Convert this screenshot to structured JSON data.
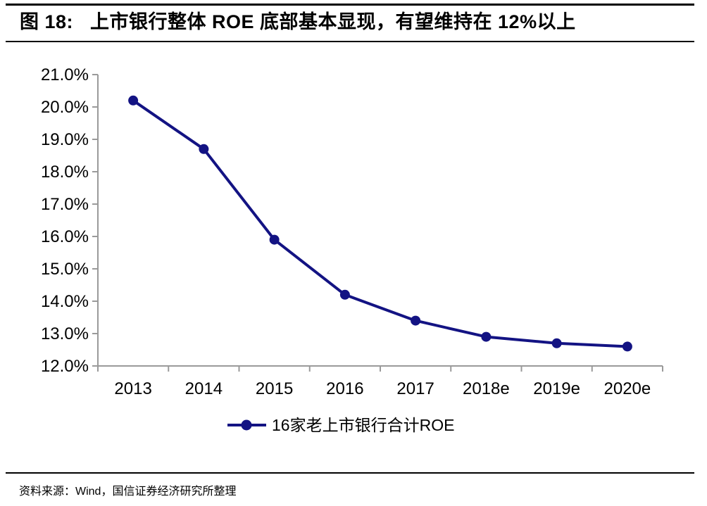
{
  "figure": {
    "label": "图 18:",
    "title": "上市银行整体 ROE 底部基本显现，有望维持在 12%以上"
  },
  "chart_data": {
    "type": "line",
    "categories": [
      "2013",
      "2014",
      "2015",
      "2016",
      "2017",
      "2018e",
      "2019e",
      "2020e"
    ],
    "series": [
      {
        "name": "16家老上市银行合计ROE",
        "values": [
          20.2,
          18.7,
          15.9,
          14.2,
          13.4,
          12.9,
          12.7,
          12.6
        ]
      }
    ],
    "title": "",
    "xlabel": "",
    "ylabel": "",
    "ylim": [
      12.0,
      21.0
    ],
    "ytick_step": 1.0,
    "ytick_suffix": "%",
    "grid": false,
    "legend_position": "bottom",
    "marker": "circle",
    "line_color": "#131383",
    "axis_color": "#9a9a9a",
    "label_color": "#000000"
  },
  "footer": {
    "source": "资料来源：Wind，国信证券经济研究所整理"
  }
}
